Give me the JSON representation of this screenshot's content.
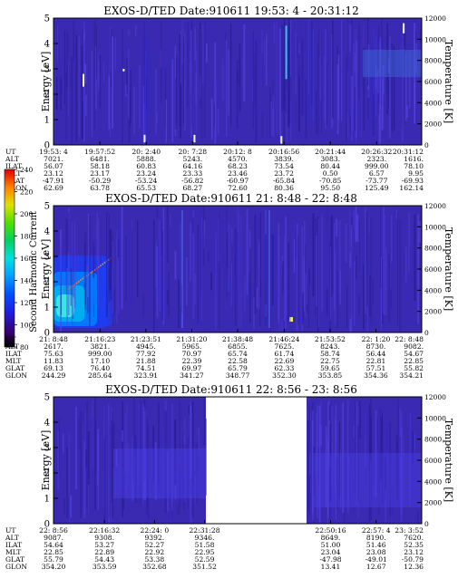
{
  "chart_data": [
    {
      "type": "heatmap",
      "title": "EXOS-D/TED   Date:910611  19:53: 4 - 20:31:12",
      "ylabel": "Energy [eV]",
      "y2label": "Temperature [K]",
      "ylim": [
        0,
        5
      ],
      "y_ticks": [
        "0",
        "1",
        "2",
        "3",
        "4",
        "5"
      ],
      "y2lim": [
        0,
        12000
      ],
      "y2_ticks": [
        "0",
        "2000",
        "4000",
        "6000",
        "8000",
        "10000",
        "12000"
      ],
      "ephemeris_labels": [
        "UT",
        "ALT",
        "ILAT",
        "MLT",
        "GLAT",
        "GLON"
      ],
      "ephemeris": [
        [
          "19:53: 4",
          "7021.",
          "56.07",
          "23.12",
          "-47.91",
          "62.69"
        ],
        [
          "19:57:52",
          "6481.",
          "58.18",
          "23.17",
          "-50.29",
          "63.78"
        ],
        [
          "20: 2:40",
          "5888.",
          "60.83",
          "23.24",
          "-53.24",
          "65.53"
        ],
        [
          "20: 7:28",
          "5243.",
          "64.16",
          "23.33",
          "-56.82",
          "68.27"
        ],
        [
          "20:12: 8",
          "4570.",
          "68.23",
          "23.46",
          "-60.97",
          "72.60"
        ],
        [
          "20:16:56",
          "3839.",
          "73.54",
          "23.72",
          "-65.84",
          "80.36"
        ],
        [
          "20:21:44",
          "3083.",
          "80.44",
          "0.50",
          "-70.85",
          "95.50"
        ],
        [
          "20:26:32",
          "2323.",
          "999.00",
          "6.57",
          "-73.77",
          "125.49"
        ],
        [
          "20:31:12",
          "1616.",
          "78.10",
          "9.95",
          "-69.93",
          "162.14"
        ]
      ],
      "spikes": [
        {
          "time": "19:56:10",
          "energy_min": 2.3,
          "energy_max": 2.8
        },
        {
          "time": "20:0:20",
          "energy_min": 2.9,
          "energy_max": 3.0
        },
        {
          "time": "20:2:30",
          "energy_min": 0.1,
          "energy_max": 0.4
        },
        {
          "time": "20:7:40",
          "energy_min": 0.1,
          "energy_max": 0.4
        },
        {
          "time": "20:16:40",
          "energy_min": 0.05,
          "energy_max": 0.35
        },
        {
          "time": "20:17:10",
          "energy_min": 2.6,
          "energy_max": 4.7
        },
        {
          "time": "20:29:20",
          "energy_min": 4.4,
          "energy_max": 4.8
        }
      ]
    },
    {
      "type": "heatmap",
      "title": "EXOS-D/TED   Date:910611  21: 8:48 - 22: 8:48",
      "ylabel": "Energy [eV]",
      "y2label": "Temperature [K]",
      "ylim": [
        0,
        5
      ],
      "y_ticks": [
        "0",
        "1",
        "2",
        "3",
        "4",
        "5"
      ],
      "y2lim": [
        0,
        12000
      ],
      "y2_ticks": [
        "0",
        "2000",
        "4000",
        "6000",
        "8000",
        "10000",
        "12000"
      ],
      "colorbar": {
        "label": "Second Harmonic Current",
        "range": [
          80,
          240
        ],
        "ticks": [
          "80",
          "100",
          "120",
          "140",
          "160",
          "180",
          "200",
          "220",
          "240"
        ]
      },
      "ephemeris_labels": [
        "UT",
        "ALT",
        "ILAT",
        "MLT",
        "GLAT",
        "GLON"
      ],
      "ephemeris": [
        [
          "21: 8:48",
          "2617.",
          "75.63",
          "11.83",
          "69.13",
          "244.29"
        ],
        [
          "21:16:23",
          "3821.",
          "999.00",
          "17.10",
          "76.40",
          "285.64"
        ],
        [
          "21:23:51",
          "4945.",
          "77.92",
          "21.88",
          "74.51",
          "323.91"
        ],
        [
          "21:31:20",
          "5965.",
          "70.97",
          "22.39",
          "69.97",
          "341.27"
        ],
        [
          "21:38:48",
          "6855.",
          "65.74",
          "22.58",
          "65.79",
          "348.77"
        ],
        [
          "21:46:24",
          "7625.",
          "61.74",
          "22.69",
          "62.33",
          "352.30"
        ],
        [
          "21:53:52",
          "8243.",
          "58.74",
          "22.75",
          "59.65",
          "353.85"
        ],
        [
          "22: 1:20",
          "8730.",
          "56.44",
          "22.81",
          "57.51",
          "354.36"
        ],
        [
          "22: 8:48",
          "9082.",
          "54.67",
          "22.85",
          "55.82",
          "354.21"
        ]
      ]
    },
    {
      "type": "heatmap",
      "title": "EXOS-D/TED   Date:910611  22: 8:56 - 23: 8:56",
      "ylabel": "Energy [eV]",
      "y2label": "Temperature [K]",
      "ylim": [
        0,
        5
      ],
      "y_ticks": [
        "0",
        "1",
        "2",
        "3",
        "4",
        "5"
      ],
      "y2lim": [
        0,
        12000
      ],
      "y2_ticks": [
        "0",
        "2000",
        "4000",
        "6000",
        "8000",
        "10000",
        "12000"
      ],
      "data_gap": [
        "22:31:28",
        "22:50:16"
      ],
      "ephemeris_labels": [
        "UT",
        "ALT",
        "ILAT",
        "MLT",
        "GLAT",
        "GLON"
      ],
      "ephemeris": [
        [
          "22: 8:56",
          "9087.",
          "54.64",
          "22.85",
          "55.79",
          "354.20"
        ],
        [
          "22:16:32",
          "9308.",
          "53.27",
          "22.89",
          "54.43",
          "353.59"
        ],
        [
          "22:24: 0",
          "9392.",
          "52.27",
          "22.92",
          "53.38",
          "352.68"
        ],
        [
          "22:31:28",
          "9346.",
          "51.58",
          "22.95",
          "52.59",
          "351.52"
        ],
        [
          "22:50:16",
          "8649.",
          "51.00",
          "23.04",
          "-47.98",
          "13.41"
        ],
        [
          "22:57: 4",
          "8190.",
          "51.46",
          "23.08",
          "-49.01",
          "12.67"
        ],
        [
          "23: 3:52",
          "7620.",
          "52.35",
          "23.12",
          "-50.79",
          "12.36"
        ]
      ]
    }
  ]
}
